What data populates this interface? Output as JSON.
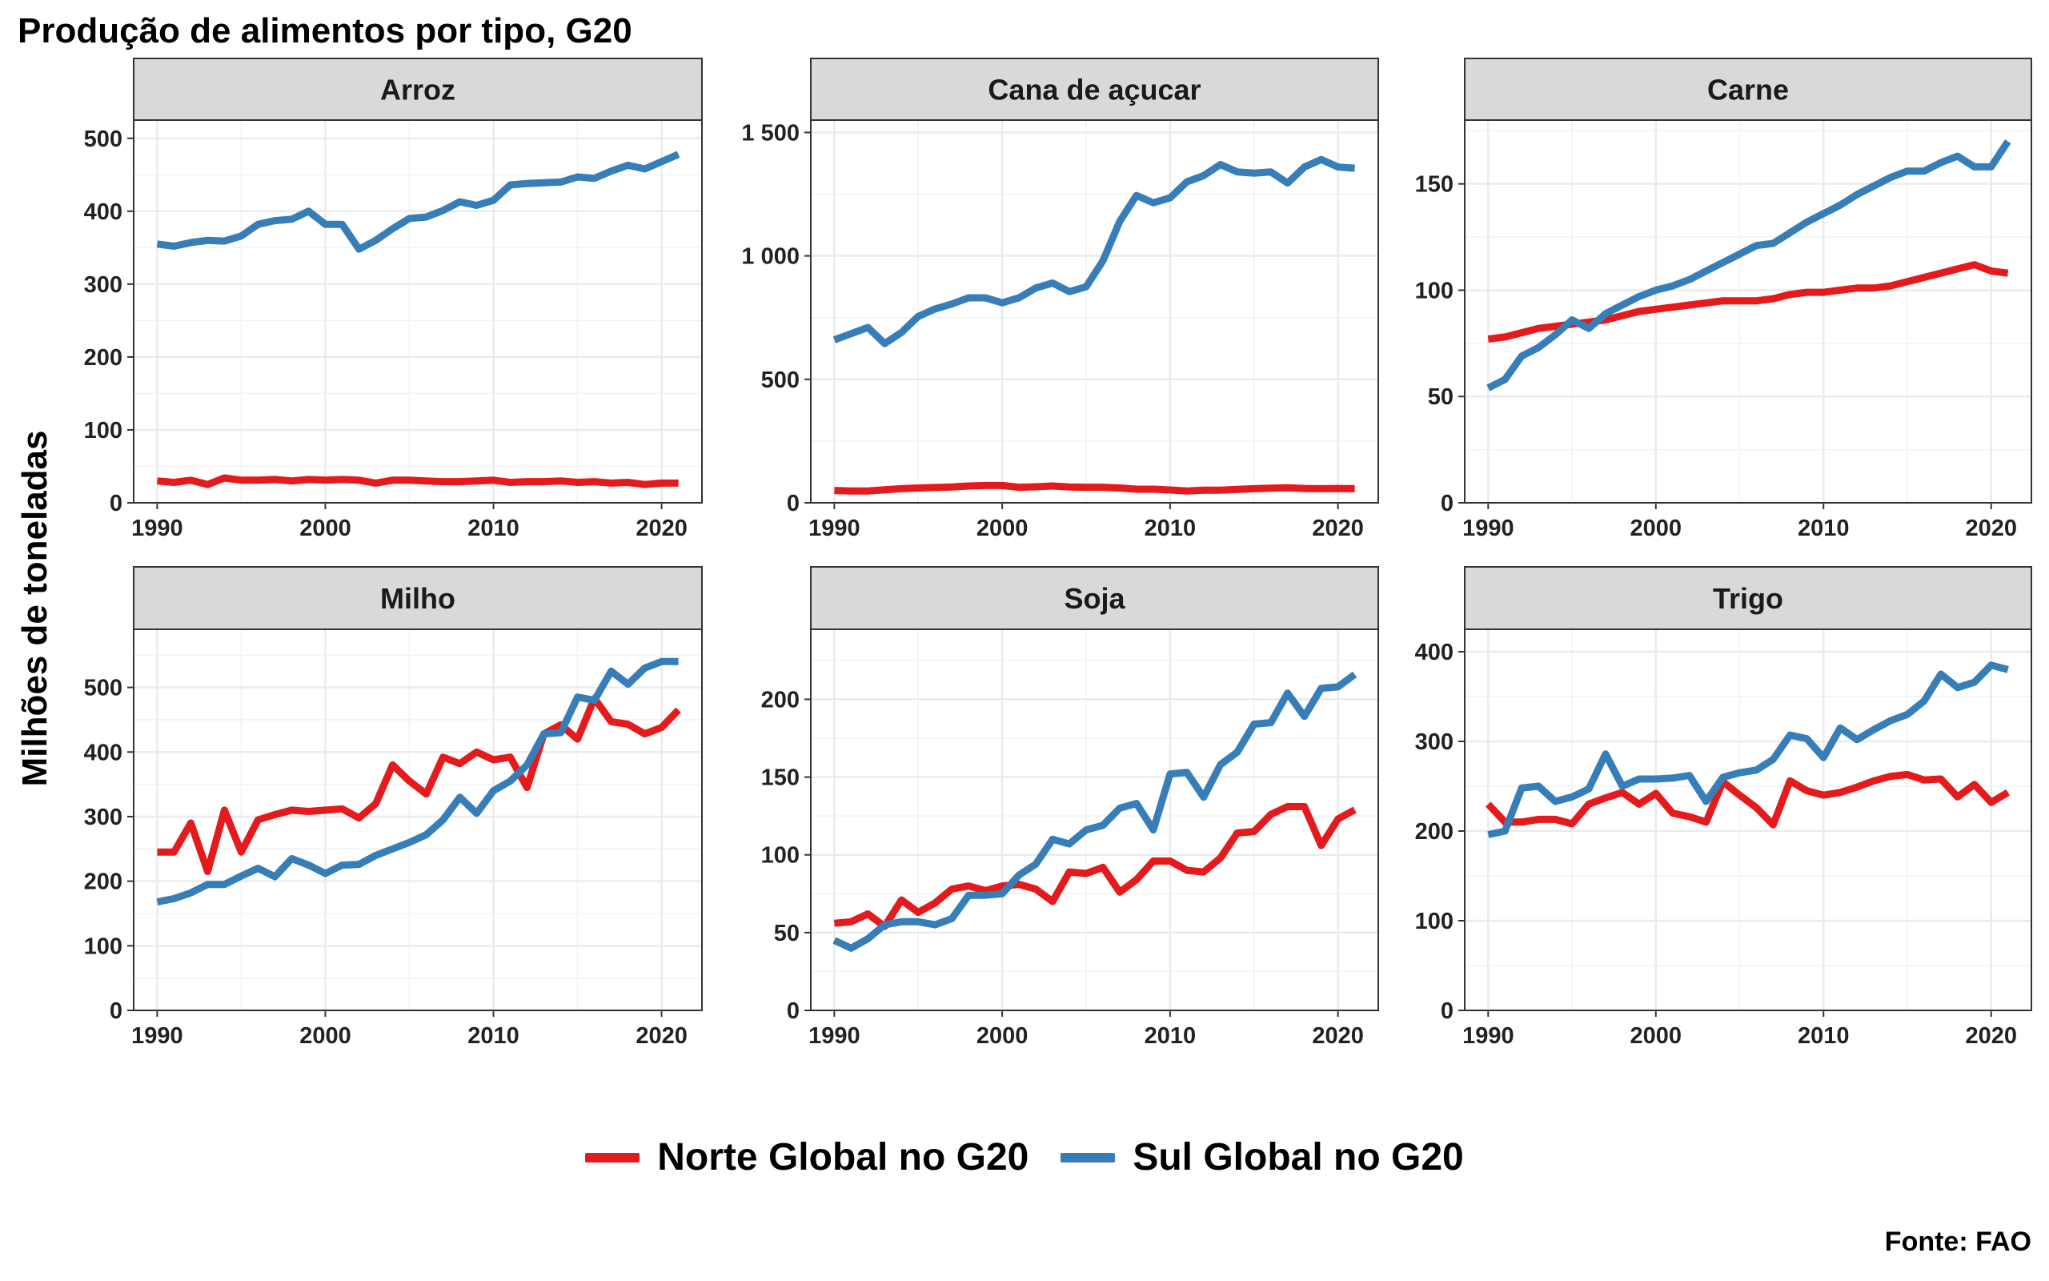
{
  "title": "Produção de alimentos por tipo, G20",
  "ylabel": "Milhões de toneladas",
  "source": "Fonte: FAO",
  "colors": {
    "norte": "#E41A1C",
    "sul": "#377EB8",
    "strip_bg": "#D9D9D9",
    "grid": "#EBEBEB"
  },
  "legend": [
    {
      "name": "Norte Global no G20",
      "color": "#E41A1C"
    },
    {
      "name": "Sul Global no G20",
      "color": "#377EB8"
    }
  ],
  "chart_data": [
    {
      "type": "line",
      "panel": "Arroz",
      "x": [
        1990,
        1991,
        1992,
        1993,
        1994,
        1995,
        1996,
        1997,
        1998,
        1999,
        2000,
        2001,
        2002,
        2003,
        2004,
        2005,
        2006,
        2007,
        2008,
        2009,
        2010,
        2011,
        2012,
        2013,
        2014,
        2015,
        2016,
        2017,
        2018,
        2019,
        2020,
        2021
      ],
      "xlim": [
        1988.6,
        2022.4
      ],
      "xticks": [
        1990,
        2000,
        2010,
        2020
      ],
      "ylim": [
        0,
        525
      ],
      "yticks": [
        0,
        100,
        200,
        300,
        400,
        500
      ],
      "ytick_labels": [
        "0",
        "100",
        "200",
        "300",
        "400",
        "500"
      ],
      "series": [
        {
          "name": "Norte Global no G20",
          "values": [
            30,
            28,
            31,
            25,
            34,
            31,
            31,
            32,
            30,
            32,
            31,
            32,
            31,
            27,
            31,
            31,
            30,
            29,
            29,
            30,
            31,
            28,
            29,
            29,
            30,
            28,
            29,
            27,
            28,
            25,
            27,
            27
          ]
        },
        {
          "name": "Sul Global no G20",
          "values": [
            355,
            352,
            357,
            360,
            359,
            366,
            382,
            387,
            389,
            400,
            382,
            382,
            348,
            360,
            376,
            390,
            392,
            401,
            413,
            408,
            415,
            436,
            438,
            439,
            440,
            447,
            445,
            455,
            463,
            458,
            468,
            478
          ]
        }
      ]
    },
    {
      "type": "line",
      "panel": "Cana de açucar",
      "x": [
        1990,
        1991,
        1992,
        1993,
        1994,
        1995,
        1996,
        1997,
        1998,
        1999,
        2000,
        2001,
        2002,
        2003,
        2004,
        2005,
        2006,
        2007,
        2008,
        2009,
        2010,
        2011,
        2012,
        2013,
        2014,
        2015,
        2016,
        2017,
        2018,
        2019,
        2020,
        2021
      ],
      "xlim": [
        1988.6,
        2022.4
      ],
      "xticks": [
        1990,
        2000,
        2010,
        2020
      ],
      "ylim": [
        0,
        1550
      ],
      "yticks": [
        0,
        500,
        1000,
        1500
      ],
      "ytick_labels": [
        "0",
        "500",
        "1 000",
        "1 500"
      ],
      "series": [
        {
          "name": "Norte Global no G20",
          "values": [
            50,
            48,
            48,
            53,
            57,
            60,
            62,
            64,
            68,
            70,
            70,
            63,
            65,
            68,
            64,
            63,
            63,
            60,
            55,
            55,
            52,
            48,
            51,
            51,
            54,
            57,
            59,
            61,
            58,
            57,
            58,
            57
          ]
        },
        {
          "name": "Sul Global no G20",
          "values": [
            660,
            685,
            710,
            645,
            690,
            755,
            785,
            805,
            830,
            830,
            810,
            830,
            870,
            890,
            855,
            875,
            980,
            1140,
            1245,
            1215,
            1235,
            1300,
            1325,
            1370,
            1340,
            1335,
            1340,
            1295,
            1360,
            1390,
            1360,
            1355
          ]
        }
      ]
    },
    {
      "type": "line",
      "panel": "Carne",
      "x": [
        1990,
        1991,
        1992,
        1993,
        1994,
        1995,
        1996,
        1997,
        1998,
        1999,
        2000,
        2001,
        2002,
        2003,
        2004,
        2005,
        2006,
        2007,
        2008,
        2009,
        2010,
        2011,
        2012,
        2013,
        2014,
        2015,
        2016,
        2017,
        2018,
        2019,
        2020,
        2021
      ],
      "xlim": [
        1988.6,
        2022.4
      ],
      "xticks": [
        1990,
        2000,
        2010,
        2020
      ],
      "ylim": [
        0,
        180
      ],
      "yticks": [
        0,
        50,
        100,
        150
      ],
      "ytick_labels": [
        "0",
        "50",
        "100",
        "150"
      ],
      "series": [
        {
          "name": "Norte Global no G20",
          "values": [
            77,
            78,
            80,
            82,
            83,
            84,
            85,
            86,
            88,
            90,
            91,
            92,
            93,
            94,
            95,
            95,
            95,
            96,
            98,
            99,
            99,
            100,
            101,
            101,
            102,
            104,
            106,
            108,
            110,
            112,
            109,
            108
          ]
        },
        {
          "name": "Sul Global no G20",
          "values": [
            54,
            58,
            69,
            73,
            79,
            86,
            82,
            89,
            93,
            97,
            100,
            102,
            105,
            109,
            113,
            117,
            121,
            122,
            127,
            132,
            136,
            140,
            145,
            149,
            153,
            156,
            156,
            160,
            163,
            158,
            158,
            170
          ]
        }
      ]
    },
    {
      "type": "line",
      "panel": "Milho",
      "x": [
        1990,
        1991,
        1992,
        1993,
        1994,
        1995,
        1996,
        1997,
        1998,
        1999,
        2000,
        2001,
        2002,
        2003,
        2004,
        2005,
        2006,
        2007,
        2008,
        2009,
        2010,
        2011,
        2012,
        2013,
        2014,
        2015,
        2016,
        2017,
        2018,
        2019,
        2020,
        2021
      ],
      "xlim": [
        1988.6,
        2022.4
      ],
      "xticks": [
        1990,
        2000,
        2010,
        2020
      ],
      "ylim": [
        0,
        590
      ],
      "yticks": [
        0,
        100,
        200,
        300,
        400,
        500
      ],
      "ytick_labels": [
        "0",
        "100",
        "200",
        "300",
        "400",
        "500"
      ],
      "series": [
        {
          "name": "Norte Global no G20",
          "values": [
            245,
            245,
            290,
            215,
            310,
            245,
            295,
            303,
            310,
            308,
            310,
            312,
            298,
            320,
            380,
            355,
            335,
            392,
            382,
            400,
            388,
            392,
            345,
            428,
            442,
            420,
            483,
            447,
            443,
            428,
            438,
            465
          ]
        },
        {
          "name": "Sul Global no G20",
          "values": [
            168,
            173,
            182,
            195,
            195,
            208,
            220,
            207,
            235,
            225,
            212,
            225,
            226,
            240,
            250,
            260,
            272,
            295,
            330,
            305,
            340,
            355,
            380,
            428,
            430,
            485,
            480,
            525,
            505,
            530,
            540,
            540
          ]
        }
      ]
    },
    {
      "type": "line",
      "panel": "Soja",
      "x": [
        1990,
        1991,
        1992,
        1993,
        1994,
        1995,
        1996,
        1997,
        1998,
        1999,
        2000,
        2001,
        2002,
        2003,
        2004,
        2005,
        2006,
        2007,
        2008,
        2009,
        2010,
        2011,
        2012,
        2013,
        2014,
        2015,
        2016,
        2017,
        2018,
        2019,
        2020,
        2021
      ],
      "xlim": [
        1988.6,
        2022.4
      ],
      "xticks": [
        1990,
        2000,
        2010,
        2020
      ],
      "ylim": [
        0,
        245
      ],
      "yticks": [
        0,
        50,
        100,
        150,
        200
      ],
      "ytick_labels": [
        "0",
        "50",
        "100",
        "150",
        "200"
      ],
      "series": [
        {
          "name": "Norte Global no G20",
          "values": [
            56,
            57,
            62,
            54,
            71,
            63,
            69,
            78,
            80,
            77,
            80,
            81,
            78,
            70,
            89,
            88,
            92,
            76,
            84,
            96,
            96,
            90,
            89,
            98,
            114,
            115,
            126,
            131,
            131,
            106,
            123,
            129
          ]
        },
        {
          "name": "Sul Global no G20",
          "values": [
            45,
            40,
            46,
            55,
            57,
            57,
            55,
            59,
            74,
            74,
            75,
            87,
            94,
            110,
            107,
            116,
            119,
            130,
            133,
            116,
            152,
            153,
            137,
            158,
            166,
            184,
            185,
            204,
            189,
            207,
            208,
            216
          ]
        }
      ]
    },
    {
      "type": "line",
      "panel": "Trigo",
      "x": [
        1990,
        1991,
        1992,
        1993,
        1994,
        1995,
        1996,
        1997,
        1998,
        1999,
        2000,
        2001,
        2002,
        2003,
        2004,
        2005,
        2006,
        2007,
        2008,
        2009,
        2010,
        2011,
        2012,
        2013,
        2014,
        2015,
        2016,
        2017,
        2018,
        2019,
        2020,
        2021
      ],
      "xlim": [
        1988.6,
        2022.4
      ],
      "xticks": [
        1990,
        2000,
        2010,
        2020
      ],
      "ylim": [
        0,
        425
      ],
      "yticks": [
        0,
        100,
        200,
        300,
        400
      ],
      "ytick_labels": [
        "0",
        "100",
        "200",
        "300",
        "400"
      ],
      "series": [
        {
          "name": "Norte Global no G20",
          "values": [
            230,
            210,
            210,
            213,
            213,
            208,
            230,
            237,
            243,
            230,
            242,
            220,
            216,
            210,
            255,
            240,
            226,
            207,
            256,
            245,
            240,
            243,
            249,
            256,
            261,
            263,
            257,
            258,
            238,
            252,
            232,
            243
          ]
        },
        {
          "name": "Sul Global no G20",
          "values": [
            196,
            200,
            248,
            250,
            233,
            238,
            247,
            286,
            250,
            258,
            258,
            259,
            262,
            233,
            260,
            265,
            268,
            280,
            307,
            303,
            282,
            315,
            302,
            313,
            323,
            330,
            345,
            375,
            360,
            366,
            385,
            380
          ]
        }
      ]
    }
  ]
}
